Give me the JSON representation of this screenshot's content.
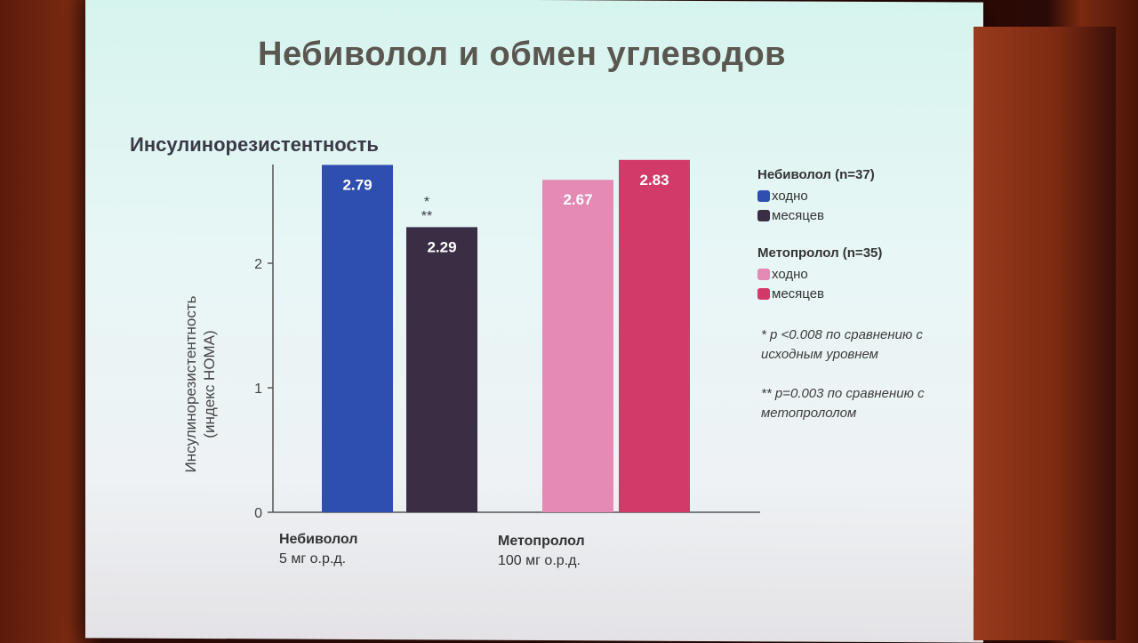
{
  "slide": {
    "title": "Небиволол и обмен углеводов",
    "subtitle": "Инсулинорезистентность"
  },
  "chart_data": {
    "type": "bar",
    "ylabel_line1": "Инсулинорезистентность",
    "ylabel_line2": "(индекс HOMA)",
    "ylim": [
      0,
      2.9
    ],
    "yticks": [
      "0",
      "1",
      "2"
    ],
    "groups": [
      {
        "name": "Небиволол",
        "dose": "5 мг о.р.д.",
        "bars": [
          {
            "value": 2.79,
            "label": "2.79",
            "color": "#2f4fb0"
          },
          {
            "value": 2.29,
            "label": "2.29",
            "color": "#3a2e44"
          }
        ]
      },
      {
        "name": "Метопролол",
        "dose": "100 мг о.р.д.",
        "bars": [
          {
            "value": 2.67,
            "label": "2.67",
            "color": "#e48ab4"
          },
          {
            "value": 2.83,
            "label": "2.83",
            "color": "#d23a6a"
          }
        ]
      }
    ],
    "significance": [
      "*",
      "**"
    ]
  },
  "legend": {
    "nebivolol_header": "Небиволол (n=37)",
    "nebivolol_items": [
      "ходно",
      "месяцев"
    ],
    "metoprolol_header": "Метопролол (n=35)",
    "metoprolol_items": [
      "ходно",
      "месяцев"
    ]
  },
  "notes": {
    "note1_line1": "* p <0.008 по сравнению с",
    "note1_line2": "исходным уровнем",
    "note2_line1": "** p=0.003 по сравнению с",
    "note2_line2": "метопрололом"
  },
  "colors": {
    "neb_base": "#2f4fb0",
    "neb_after": "#3a2e44",
    "met_base": "#e48ab4",
    "met_after": "#d23a6a"
  }
}
